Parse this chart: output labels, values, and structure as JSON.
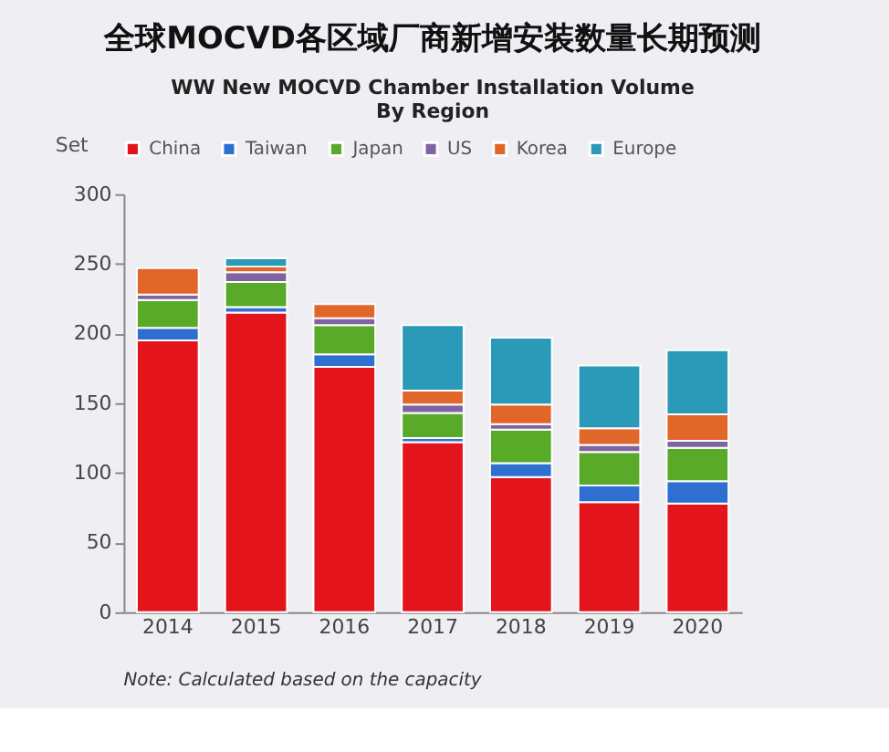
{
  "chart_data": {
    "type": "bar",
    "title": "全球MOCVD各区域厂商新增安装数量长期预测",
    "subtitle": "WW New MOCVD Chamber Installation Volume\nBy Region",
    "ylabel": "Set",
    "categories": [
      "2014",
      "2015",
      "2016",
      "2017",
      "2018",
      "2019",
      "2020"
    ],
    "series": [
      {
        "name": "China",
        "color": "#e3141c",
        "values": [
          195,
          215,
          176,
          122,
          97,
          79,
          78
        ]
      },
      {
        "name": "Taiwan",
        "color": "#2f6fd1",
        "values": [
          9,
          4,
          9,
          3,
          10,
          12,
          16
        ]
      },
      {
        "name": "Japan",
        "color": "#5aaa2a",
        "values": [
          20,
          18,
          21,
          18,
          24,
          24,
          24
        ]
      },
      {
        "name": "US",
        "color": "#8064a2",
        "values": [
          4,
          7,
          5,
          6,
          4,
          5,
          5
        ]
      },
      {
        "name": "Korea",
        "color": "#e0662a",
        "values": [
          19,
          4,
          10,
          10,
          14,
          12,
          19
        ]
      },
      {
        "name": "Europe",
        "color": "#2a9ab8",
        "values": [
          null,
          6,
          null,
          47,
          48,
          45,
          46
        ]
      }
    ],
    "stacked": true,
    "ylim": [
      0,
      300
    ],
    "yticks": [
      0,
      50,
      100,
      150,
      200,
      250,
      300
    ],
    "legend": "top",
    "grid": false,
    "annotations": [
      "Note: Calculated based on the capacity"
    ]
  }
}
